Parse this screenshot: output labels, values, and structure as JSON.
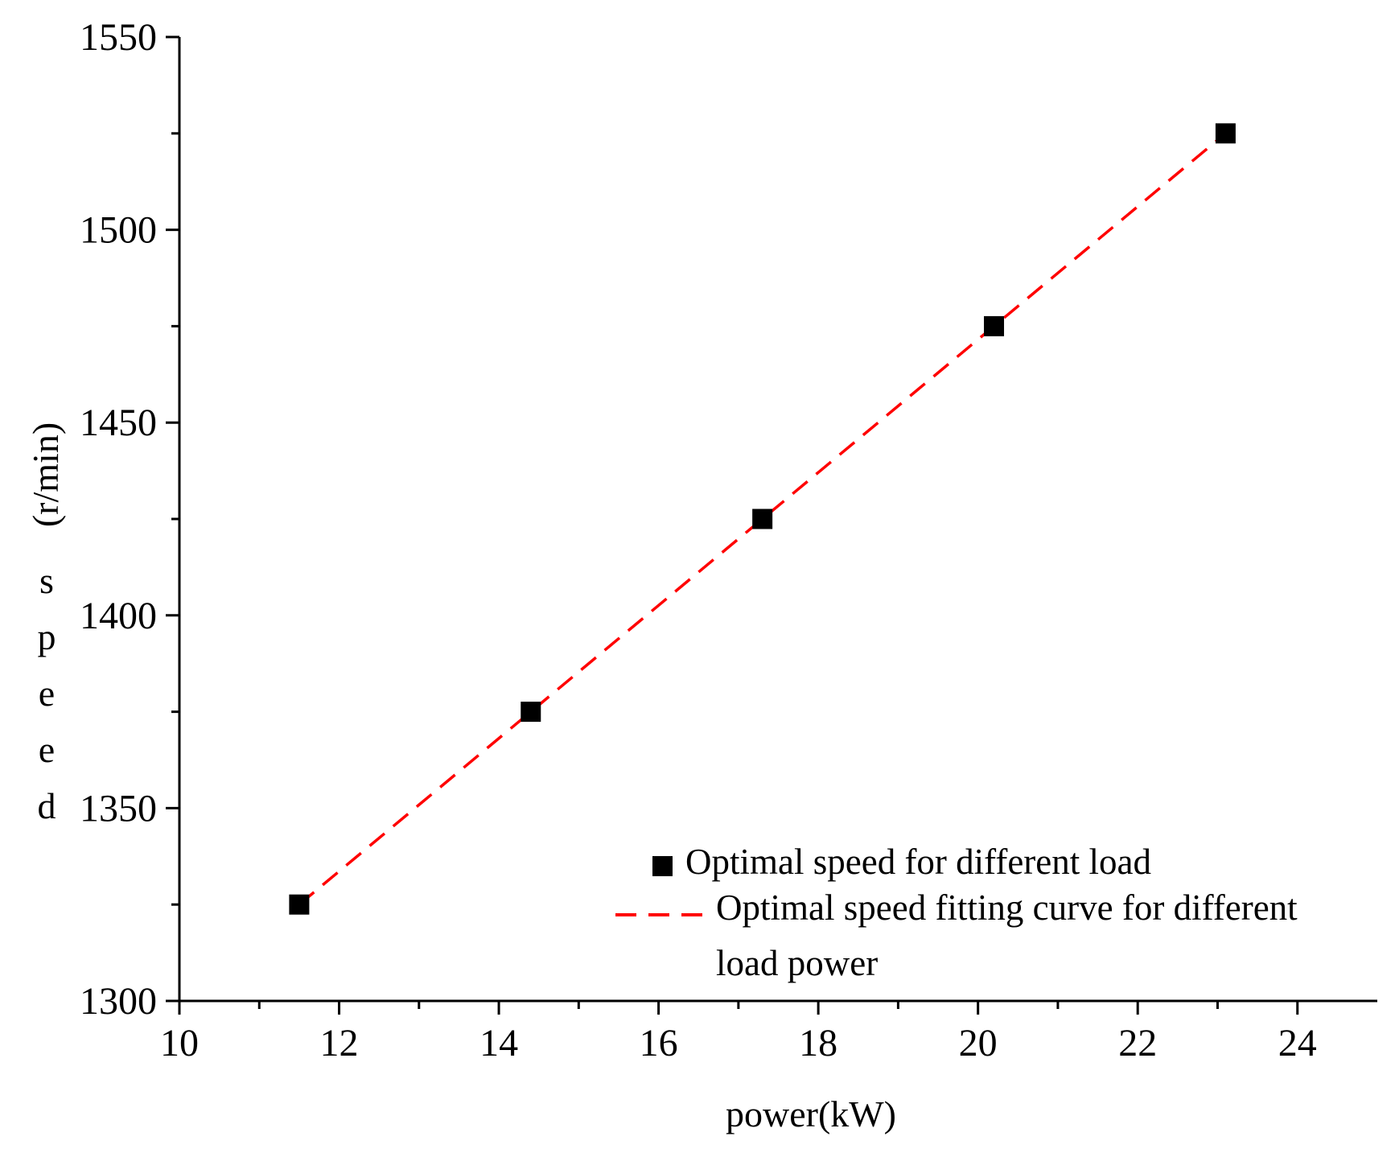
{
  "chart_data": {
    "type": "scatter",
    "title": "",
    "xlabel": "power(kW)",
    "ylabel_letters": [
      "d",
      "e",
      "e",
      "p",
      "s"
    ],
    "ylabel_unit": "(r/min)",
    "xlim": [
      10,
      25
    ],
    "ylim": [
      1300,
      1550
    ],
    "x_ticks": [
      10,
      12,
      14,
      16,
      18,
      20,
      22,
      24
    ],
    "x_minor_ticks": [
      11,
      13,
      15,
      17,
      19,
      21,
      23
    ],
    "y_ticks": [
      1300,
      1350,
      1400,
      1450,
      1500,
      1550
    ],
    "y_minor_ticks": [
      1325,
      1375,
      1425,
      1475,
      1525
    ],
    "grid": false,
    "legend_position": "bottom-right",
    "series": [
      {
        "name": "Optimal speed for different load",
        "kind": "markers",
        "marker": "square",
        "color": "#000000",
        "x": [
          11.5,
          14.4,
          17.3,
          20.2,
          23.1
        ],
        "y": [
          1325,
          1375,
          1425,
          1475,
          1525
        ]
      },
      {
        "name_line1": "Optimal speed fitting curve for different",
        "name_line2": "load power",
        "kind": "dashed-line",
        "color": "#ff0000",
        "x": [
          11.5,
          23.1
        ],
        "y": [
          1325,
          1525
        ]
      }
    ]
  }
}
